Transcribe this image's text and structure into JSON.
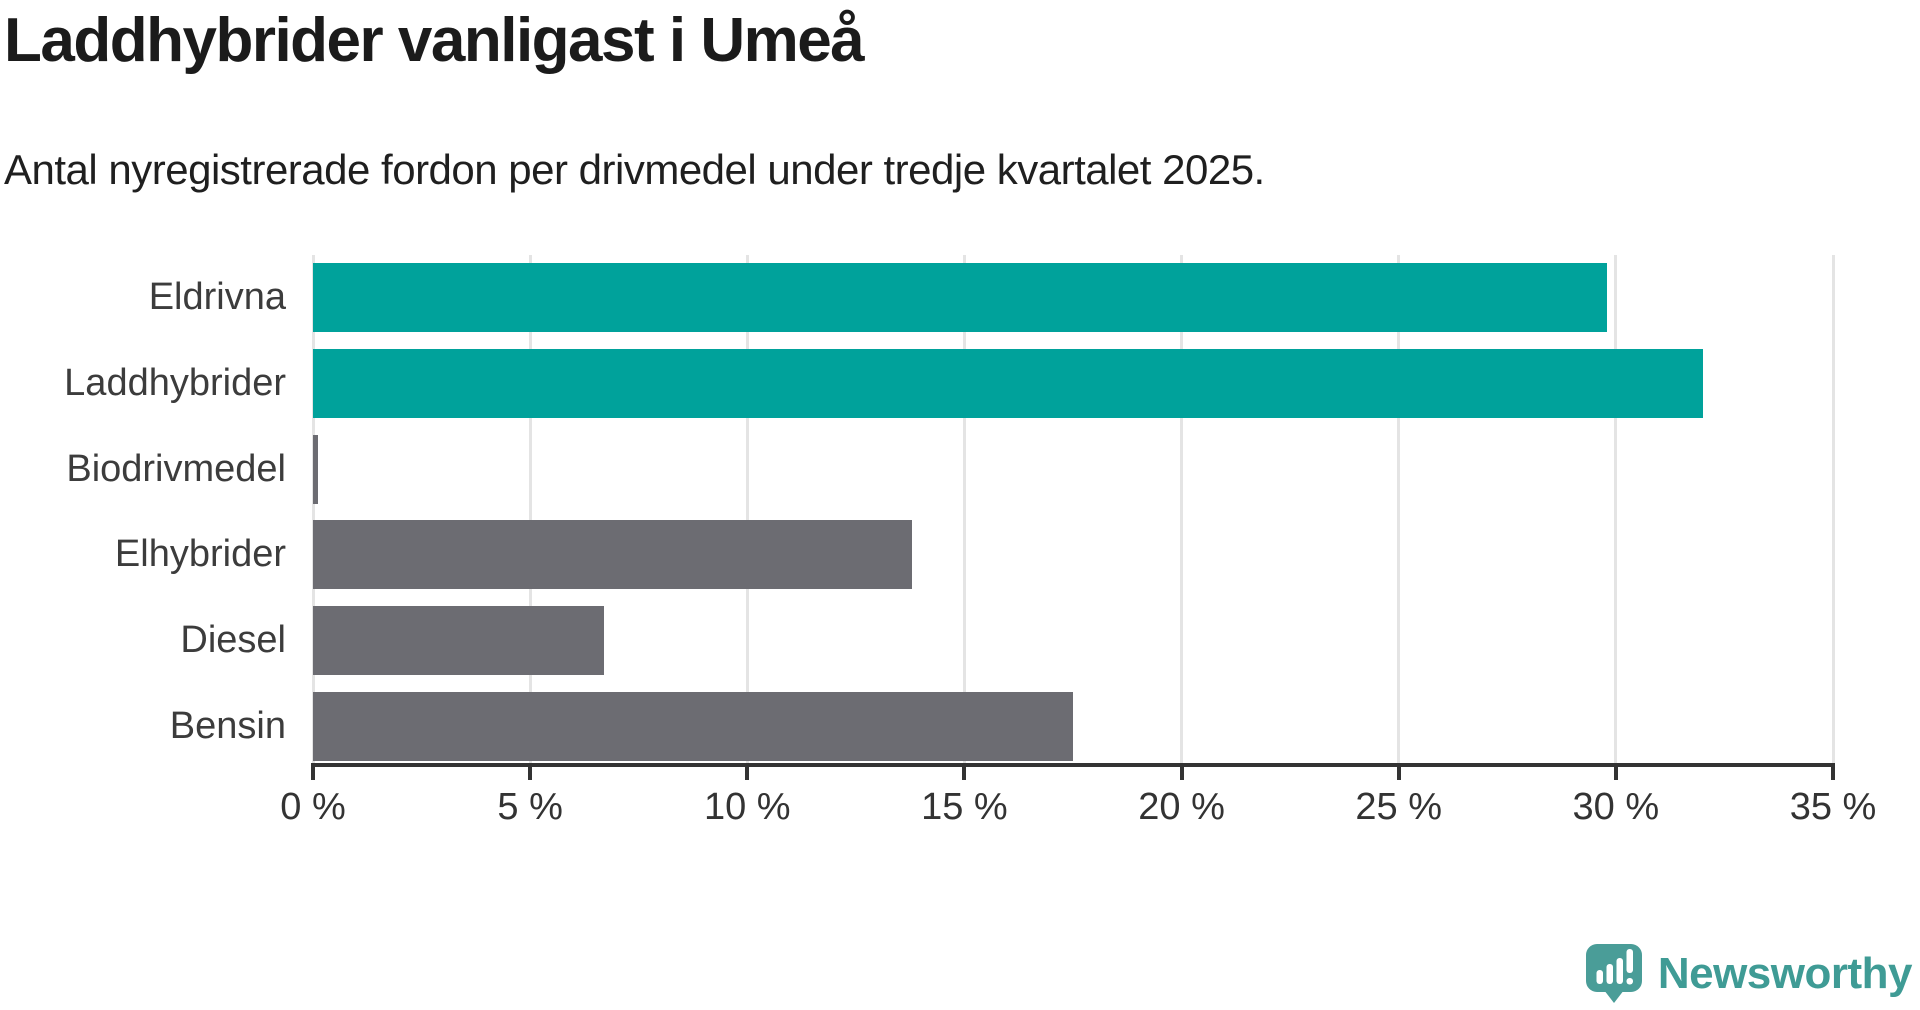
{
  "header": {
    "title": "Laddhybrider vanligast i Umeå",
    "subtitle": "Antal nyregistrerade fordon per drivmedel under tredje kvartalet 2025."
  },
  "chart_data": {
    "type": "bar",
    "orientation": "horizontal",
    "title": "Laddhybrider vanligast i Umeå",
    "subtitle": "Antal nyregistrerade fordon per drivmedel under tredje kvartalet 2025.",
    "categories": [
      "Eldrivna",
      "Laddhybrider",
      "Biodrivmedel",
      "Elhybrider",
      "Diesel",
      "Bensin"
    ],
    "values": [
      29.8,
      32.0,
      0.1,
      13.8,
      6.7,
      17.5
    ],
    "unit": "%",
    "bar_colors": [
      "#00a29b",
      "#00a29b",
      "#6c6c72",
      "#6c6c72",
      "#6c6c72",
      "#6c6c72"
    ],
    "highlight_color": "#00a29b",
    "default_color": "#6c6c72",
    "xlabel": "",
    "ylabel": "",
    "xlim": [
      0,
      35
    ],
    "x_ticks": [
      0,
      5,
      10,
      15,
      20,
      25,
      30,
      35
    ],
    "x_tick_labels": [
      "0 %",
      "5 %",
      "10 %",
      "15 %",
      "20 %",
      "25 %",
      "30 %",
      "35 %"
    ],
    "grid": "vertical-only",
    "gridline_color": "#e4e4e4",
    "axis_color": "#333333",
    "legend": "none"
  },
  "branding": {
    "logo_text": "Newsworthy",
    "logo_text_color": "#3f9b95",
    "logo_icon": "newsworthy-speech-bubble-chart-icon",
    "logo_icon_color": "#4a9d98"
  }
}
